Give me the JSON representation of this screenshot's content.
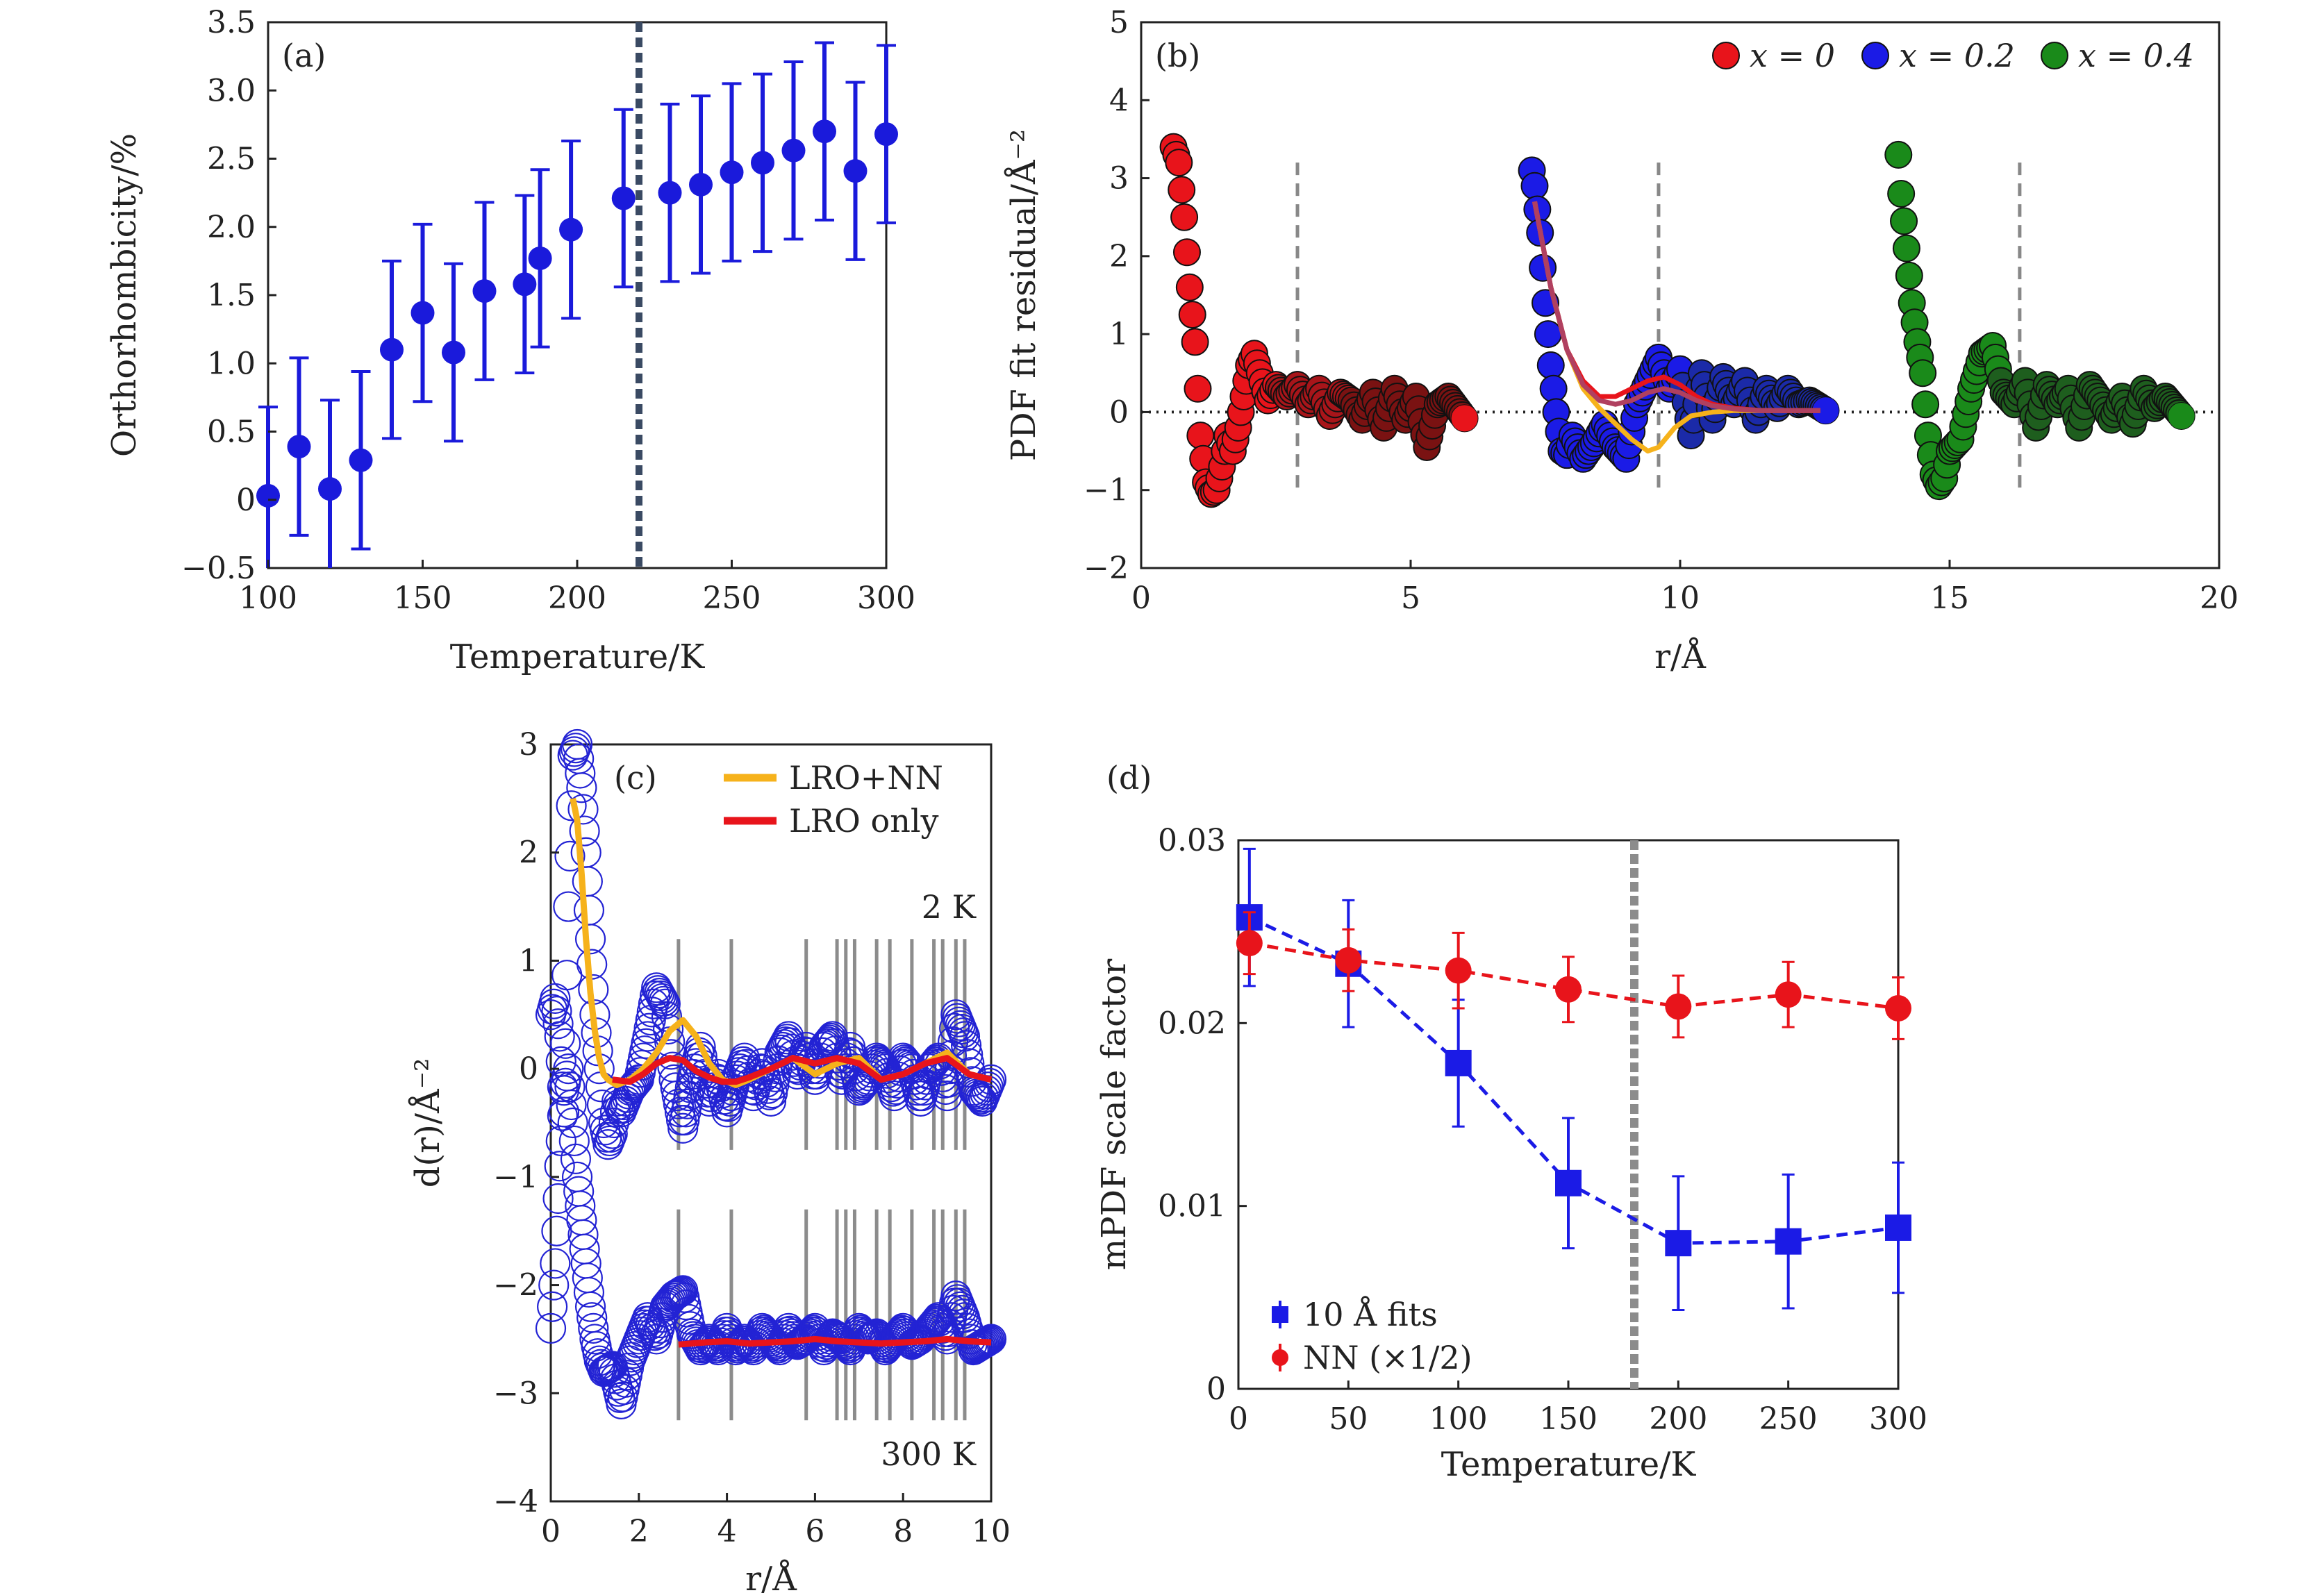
{
  "chart_data": [
    {
      "panel": "(a)",
      "type": "scatter",
      "xlabel": "Temperature/K",
      "ylabel": "Orthorhombicity/%",
      "xlim": [
        100,
        300
      ],
      "ylim": [
        -0.5,
        3.5
      ],
      "xticks": [
        "100",
        "150",
        "200",
        "250",
        "300"
      ],
      "yticks": [
        "−0.5",
        "0",
        "0.5",
        "1.0",
        "1.5",
        "2.0",
        "2.5",
        "3.0",
        "3.5"
      ],
      "marker_color": "#1a1adb",
      "vline_x": 220,
      "vline_color": "#3a4a63",
      "series": [
        {
          "x": [
            100,
            110,
            120,
            130,
            140,
            150,
            160,
            170,
            183,
            188,
            198,
            215,
            230,
            240,
            250,
            260,
            270,
            280,
            290,
            300
          ],
          "y": [
            0.03,
            0.39,
            0.08,
            0.29,
            1.1,
            1.37,
            1.08,
            1.53,
            1.58,
            1.77,
            1.98,
            2.21,
            2.25,
            2.31,
            2.4,
            2.47,
            2.56,
            2.7,
            2.41,
            2.68
          ],
          "err": [
            0.65,
            0.65,
            0.65,
            0.65,
            0.65,
            0.65,
            0.65,
            0.65,
            0.65,
            0.65,
            0.65,
            0.65,
            0.65,
            0.65,
            0.65,
            0.65,
            0.65,
            0.65,
            0.65,
            0.65
          ]
        }
      ]
    },
    {
      "panel": "(b)",
      "type": "scatter",
      "xlabel": "r/Å",
      "ylabel": "PDF fit residual/Å⁻²",
      "xlim": [
        0,
        20
      ],
      "ylim": [
        -2,
        5
      ],
      "xticks": [
        "0",
        "5",
        "10",
        "15",
        "20"
      ],
      "yticks": [
        "−2",
        "−1",
        "0",
        "1",
        "2",
        "3",
        "4",
        "5"
      ],
      "legend": [
        "x = 0",
        "x = 0.2",
        "x = 0.4"
      ],
      "legend_colors": [
        "#e8141b",
        "#1b1be6",
        "#1a8a1a"
      ],
      "vlines": [
        2.9,
        9.6,
        16.3
      ],
      "series": [
        {
          "name": "x = 0",
          "x": [
            0.6,
            0.7,
            0.8,
            0.9,
            1.0,
            1.1,
            1.2,
            1.3,
            1.4,
            1.5,
            1.6,
            1.7,
            1.8,
            1.9,
            2.0,
            2.1,
            2.2,
            2.35,
            2.5,
            2.7,
            2.9,
            3.1,
            3.3,
            3.5,
            3.7,
            3.9,
            4.1,
            4.3,
            4.5,
            4.7,
            4.9,
            5.1,
            5.3,
            5.5,
            5.7,
            6.0
          ],
          "y": [
            3.4,
            3.2,
            2.5,
            1.6,
            0.9,
            -0.3,
            -0.9,
            -1.05,
            -1.0,
            -0.7,
            -0.3,
            -0.5,
            -0.2,
            0.2,
            0.6,
            0.75,
            0.5,
            0.15,
            0.35,
            0.2,
            0.35,
            0.1,
            0.3,
            -0.05,
            0.25,
            0.15,
            -0.1,
            0.25,
            -0.2,
            0.3,
            -0.1,
            0.2,
            -0.45,
            0.1,
            0.2,
            -0.08
          ]
        },
        {
          "name": "x = 0.2",
          "x": [
            7.25,
            7.3,
            7.4,
            7.5,
            7.6,
            7.7,
            7.8,
            7.9,
            8.0,
            8.2,
            8.4,
            8.6,
            8.8,
            9.0,
            9.2,
            9.4,
            9.6,
            9.8,
            10.0,
            10.2,
            10.4,
            10.6,
            10.8,
            11.0,
            11.2,
            11.4,
            11.6,
            11.8,
            12.0,
            12.2,
            12.4,
            12.7
          ],
          "y": [
            3.1,
            2.9,
            2.3,
            1.4,
            0.6,
            0.0,
            -0.5,
            -0.55,
            -0.3,
            -0.6,
            -0.4,
            -0.15,
            -0.45,
            -0.6,
            0.1,
            0.4,
            0.7,
            0.3,
            0.55,
            -0.3,
            0.5,
            -0.1,
            0.45,
            0.1,
            0.4,
            -0.1,
            0.3,
            0.05,
            0.3,
            0.1,
            0.15,
            0.02
          ]
        },
        {
          "name": "x = 0.4",
          "x": [
            14.05,
            14.1,
            14.2,
            14.3,
            14.4,
            14.5,
            14.6,
            14.7,
            14.8,
            14.9,
            15.0,
            15.2,
            15.4,
            15.6,
            15.8,
            16.0,
            16.2,
            16.4,
            16.6,
            16.8,
            17.0,
            17.2,
            17.4,
            17.6,
            17.8,
            18.0,
            18.2,
            18.4,
            18.6,
            18.8,
            19.0,
            19.3
          ],
          "y": [
            3.3,
            2.8,
            2.1,
            1.4,
            0.9,
            0.5,
            -0.3,
            -0.8,
            -0.95,
            -0.85,
            -0.5,
            -0.35,
            0.3,
            0.75,
            0.85,
            0.25,
            0.1,
            0.4,
            -0.2,
            0.35,
            0.1,
            0.3,
            -0.2,
            0.35,
            0.15,
            -0.1,
            0.2,
            -0.15,
            0.3,
            0.05,
            0.2,
            -0.05
          ]
        }
      ],
      "fit_lines": [
        {
          "color": "#f6b21b",
          "x": [
            7.3,
            7.6,
            7.9,
            8.2,
            8.5,
            8.8,
            9.1,
            9.4,
            9.6,
            9.9,
            10.2,
            10.6,
            11.0,
            11.5,
            12.0,
            12.6
          ],
          "y": [
            2.7,
            1.6,
            0.8,
            0.3,
            0.05,
            -0.15,
            -0.35,
            -0.5,
            -0.45,
            -0.2,
            -0.05,
            0.0,
            0.02,
            0.02,
            0.02,
            0.02
          ]
        },
        {
          "color": "#e8141b",
          "x": [
            7.3,
            7.6,
            7.9,
            8.2,
            8.5,
            8.8,
            9.1,
            9.4,
            9.7,
            10.0,
            10.3,
            10.6,
            11.0,
            11.5,
            12.0,
            12.6
          ],
          "y": [
            2.7,
            1.6,
            0.8,
            0.4,
            0.2,
            0.2,
            0.3,
            0.4,
            0.45,
            0.35,
            0.2,
            0.1,
            0.05,
            0.02,
            0.02,
            0.02
          ]
        },
        {
          "color": "#b04060",
          "x": [
            7.3,
            7.6,
            7.9,
            8.2,
            8.5,
            8.8,
            9.1,
            9.4,
            9.7,
            10.0,
            10.3,
            10.6,
            11.0,
            11.5,
            12.0,
            12.6
          ],
          "y": [
            2.7,
            1.6,
            0.8,
            0.35,
            0.15,
            0.1,
            0.15,
            0.25,
            0.3,
            0.25,
            0.15,
            0.08,
            0.04,
            0.02,
            0.02,
            0.02
          ]
        }
      ]
    },
    {
      "panel": "(c)",
      "type": "line",
      "xlabel": "r/Å",
      "ylabel": "d(r)/Å⁻²",
      "xlim": [
        0,
        10
      ],
      "ylim": [
        -4,
        3
      ],
      "xticks": [
        "0",
        "2",
        "4",
        "6",
        "8",
        "10"
      ],
      "yticks": [
        "−4",
        "−3",
        "−2",
        "−1",
        "0",
        "1",
        "2",
        "3"
      ],
      "annotations": [
        "2 K",
        "300 K"
      ],
      "legend": [
        "LRO+NN",
        "LRO only"
      ],
      "legend_colors": [
        "#f6b21b",
        "#e8141b"
      ],
      "vlines": [
        2.9,
        4.1,
        5.8,
        6.5,
        6.7,
        6.9,
        7.4,
        7.7,
        8.2,
        8.7,
        8.9,
        9.2,
        9.4
      ],
      "series": [
        {
          "name": "2 K data",
          "x": [
            0.0,
            0.1,
            0.2,
            0.3,
            0.4,
            0.5,
            0.6,
            0.7,
            0.8,
            0.9,
            1.0,
            1.1,
            1.2,
            1.3,
            1.4,
            1.5,
            1.6,
            1.8,
            2.0,
            2.2,
            2.4,
            2.6,
            2.8,
            3.0,
            3.2,
            3.4,
            3.6,
            3.8,
            4.0,
            4.2,
            4.4,
            4.6,
            4.8,
            5.0,
            5.2,
            5.4,
            5.6,
            5.8,
            6.0,
            6.2,
            6.4,
            6.6,
            6.8,
            7.0,
            7.2,
            7.4,
            7.6,
            7.8,
            8.0,
            8.2,
            8.4,
            8.6,
            8.8,
            9.0,
            9.2,
            9.4,
            9.6,
            9.8,
            10.0
          ],
          "y": [
            0.5,
            0.65,
            0.3,
            -0.4,
            1.5,
            2.9,
            3.0,
            2.6,
            2.0,
            1.2,
            0.5,
            0.0,
            -0.5,
            -0.7,
            -0.6,
            -0.3,
            -0.4,
            -0.2,
            -0.1,
            0.3,
            0.75,
            0.6,
            -0.1,
            -0.55,
            -0.1,
            0.2,
            -0.3,
            -0.05,
            -0.4,
            -0.1,
            0.1,
            -0.25,
            0.05,
            -0.3,
            0.15,
            0.3,
            -0.05,
            0.2,
            -0.1,
            0.2,
            0.3,
            -0.1,
            0.2,
            -0.2,
            -0.1,
            0.1,
            0.0,
            -0.25,
            0.1,
            0.0,
            -0.3,
            0.0,
            0.1,
            -0.25,
            0.5,
            0.3,
            -0.2,
            -0.3,
            -0.1
          ]
        },
        {
          "name": "300 K data",
          "x": [
            0.0,
            0.1,
            0.2,
            0.3,
            0.4,
            0.5,
            0.6,
            0.7,
            0.8,
            0.9,
            1.0,
            1.1,
            1.2,
            1.4,
            1.6,
            1.8,
            2.0,
            2.2,
            2.4,
            2.6,
            2.8,
            3.0,
            3.2,
            3.4,
            3.6,
            3.8,
            4.0,
            4.2,
            4.4,
            4.6,
            4.8,
            5.0,
            5.2,
            5.4,
            5.6,
            5.8,
            6.0,
            6.2,
            6.4,
            6.6,
            6.8,
            7.0,
            7.2,
            7.4,
            7.6,
            7.8,
            8.0,
            8.2,
            8.4,
            8.6,
            8.8,
            9.0,
            9.2,
            9.4,
            9.6,
            9.8,
            10.0
          ],
          "y": [
            -2.4,
            -1.8,
            -0.9,
            -0.2,
            0.0,
            -0.5,
            -1.0,
            -1.4,
            -1.8,
            -2.2,
            -2.5,
            -2.7,
            -2.8,
            -2.75,
            -3.1,
            -2.7,
            -2.5,
            -2.3,
            -2.5,
            -2.2,
            -2.1,
            -2.05,
            -2.45,
            -2.6,
            -2.5,
            -2.6,
            -2.4,
            -2.6,
            -2.5,
            -2.6,
            -2.4,
            -2.5,
            -2.6,
            -2.4,
            -2.55,
            -2.5,
            -2.4,
            -2.6,
            -2.45,
            -2.5,
            -2.6,
            -2.4,
            -2.5,
            -2.45,
            -2.6,
            -2.5,
            -2.4,
            -2.55,
            -2.5,
            -2.4,
            -2.3,
            -2.5,
            -2.1,
            -2.3,
            -2.6,
            -2.55,
            -2.5
          ]
        }
      ],
      "fit_lines": [
        {
          "name": "LRO+NN",
          "color": "#f6b21b",
          "x": [
            0.5,
            0.6,
            0.7,
            0.8,
            0.9,
            1.0,
            1.1,
            1.2,
            1.3,
            1.5,
            1.8,
            2.1,
            2.4,
            2.7,
            3.0,
            3.3,
            3.6,
            3.9,
            4.2,
            4.5,
            5.0,
            5.5,
            6.0,
            6.5,
            7.0,
            7.5,
            8.0,
            8.5,
            9.0,
            9.5,
            10.0
          ],
          "y": [
            2.5,
            2.3,
            1.8,
            1.2,
            0.7,
            0.35,
            0.1,
            -0.05,
            -0.1,
            -0.15,
            -0.1,
            0.0,
            0.15,
            0.35,
            0.45,
            0.3,
            0.05,
            -0.1,
            -0.15,
            -0.1,
            0.0,
            0.1,
            -0.05,
            0.05,
            0.1,
            -0.1,
            -0.05,
            0.05,
            0.15,
            -0.05,
            -0.1
          ]
        },
        {
          "name": "LRO only",
          "color": "#e8141b",
          "x": [
            1.4,
            1.8,
            2.1,
            2.4,
            2.7,
            3.0,
            3.3,
            3.6,
            3.9,
            4.2,
            4.5,
            5.0,
            5.5,
            6.0,
            6.5,
            7.0,
            7.5,
            8.0,
            8.5,
            9.0,
            9.5,
            10.0
          ],
          "y": [
            -0.1,
            -0.12,
            -0.05,
            0.05,
            0.1,
            0.08,
            -0.02,
            -0.08,
            -0.12,
            -0.12,
            -0.08,
            0.0,
            0.1,
            0.05,
            0.1,
            0.05,
            -0.1,
            -0.05,
            0.05,
            0.1,
            -0.05,
            -0.1
          ]
        },
        {
          "name": "LRO only 300 K",
          "color": "#e8141b",
          "x": [
            2.9,
            3.5,
            4.0,
            4.5,
            5.0,
            5.5,
            6.0,
            6.5,
            7.0,
            7.5,
            8.0,
            8.5,
            9.0,
            9.5,
            10.0
          ],
          "y": [
            -2.55,
            -2.53,
            -2.52,
            -2.54,
            -2.53,
            -2.52,
            -2.5,
            -2.52,
            -2.53,
            -2.54,
            -2.53,
            -2.52,
            -2.5,
            -2.52,
            -2.53
          ]
        }
      ]
    },
    {
      "panel": "(d)",
      "type": "scatter",
      "xlabel": "Temperature/K",
      "ylabel": "mPDF scale factor",
      "xlim": [
        0,
        300
      ],
      "ylim": [
        0,
        0.032
      ],
      "xticks": [
        "0",
        "50",
        "100",
        "150",
        "200",
        "250",
        "300"
      ],
      "yticks": [
        "0",
        "0.01",
        "0.02",
        "0.03"
      ],
      "vline_x": 180,
      "legend": [
        "10 Å fits",
        "NN (×1/2)"
      ],
      "legend_colors": [
        "#1b1be6",
        "#e8141b"
      ],
      "series": [
        {
          "name": "10 Å fits",
          "marker": "square",
          "x": [
            5,
            50,
            100,
            150,
            200,
            250,
            300
          ],
          "y": [
            0.0275,
            0.0248,
            0.019,
            0.012,
            0.0085,
            0.0086,
            0.0094
          ],
          "err": [
            0.004,
            0.0037,
            0.0037,
            0.0038,
            0.0039,
            0.0039,
            0.0038
          ]
        },
        {
          "name": "NN (×1/2)",
          "marker": "circle",
          "x": [
            5,
            50,
            100,
            150,
            200,
            250,
            300
          ],
          "y": [
            0.026,
            0.025,
            0.0244,
            0.0233,
            0.0223,
            0.023,
            0.0222
          ],
          "err": [
            0.0018,
            0.0018,
            0.0022,
            0.0019,
            0.0018,
            0.0019,
            0.0018
          ]
        }
      ]
    }
  ]
}
